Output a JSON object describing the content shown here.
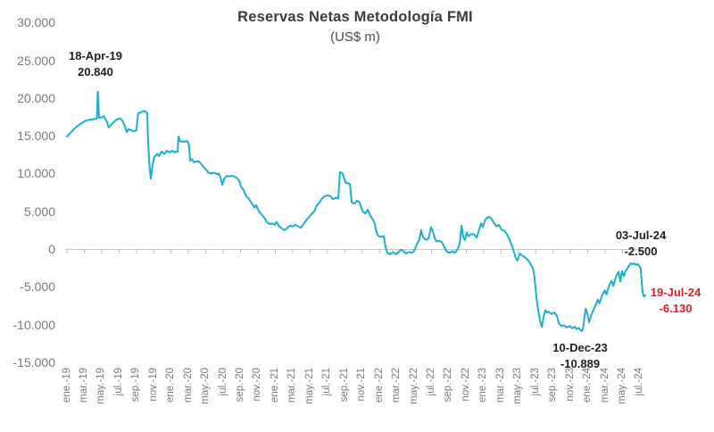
{
  "chart": {
    "title": "Reservas Netas Metodología FMI",
    "subtitle": "(US$ m)"
  },
  "annotations": {
    "peak": {
      "date": "18-Apr-19",
      "value": "20.840"
    },
    "trough": {
      "date": "10-Dec-23",
      "value": "-10.889"
    },
    "recent_high": {
      "date": "03-Jul-24",
      "value": "-2.500"
    },
    "latest": {
      "date": "19-Jul-24",
      "value": "-6.130"
    }
  },
  "colors": {
    "line": "#1CAFC9",
    "axis": "#C8C8C8",
    "tick": "#BDBDBD",
    "axis_label": "#7A7A7A",
    "annotation_dark": "#1F1F1F",
    "annotation_red": "#E11B22"
  },
  "chart_data": {
    "type": "line",
    "title": "Reservas Netas Metodología FMI",
    "subtitle": "(US$ m)",
    "xlabel": "",
    "ylabel": "US$ m",
    "grid": false,
    "legend": "none",
    "ylim": [
      -15000,
      30000
    ],
    "x_unit": "months since ene.-19",
    "x_tick_step_months": 2,
    "x_tick_labels": [
      "ene.-19",
      "mar.-19",
      "may.-19",
      "jul.-19",
      "sep.-19",
      "nov.-19",
      "ene.-20",
      "mar.-20",
      "may.-20",
      "jul.-20",
      "sep.-20",
      "nov.-20",
      "ene.-21",
      "mar.-21",
      "may.-21",
      "jul.-21",
      "sep.-21",
      "nov.-21",
      "ene.-22",
      "mar.-22",
      "may.-22",
      "jul.-22",
      "sep.-22",
      "nov.-22",
      "ene.-23",
      "mar.-23",
      "may.-23",
      "jul.-23",
      "sep.-23",
      "nov.-23",
      "ene.-24",
      "mar.-24",
      "may.-24",
      "jul.-24"
    ],
    "y_ticks": [
      {
        "label": "30.000",
        "value": 30000
      },
      {
        "label": "25.000",
        "value": 25000
      },
      {
        "label": "20.000",
        "value": 20000
      },
      {
        "label": "15.000",
        "value": 15000
      },
      {
        "label": "10.000",
        "value": 10000
      },
      {
        "label": "5.000",
        "value": 5000
      },
      {
        "label": "0",
        "value": 0
      },
      {
        "label": "-5.000",
        "value": -5000
      },
      {
        "label": "-10.000",
        "value": -10000
      },
      {
        "label": "-15.000",
        "value": -15000
      }
    ],
    "annotated_points": [
      {
        "date": "18-Apr-19",
        "value": 20840
      },
      {
        "date": "10-Dec-23",
        "value": -10889
      },
      {
        "date": "03-Jul-24",
        "value": -2500
      },
      {
        "date": "19-Jul-24",
        "value": -6130
      }
    ],
    "series": [
      {
        "name": "Reservas netas (metodología FMI)",
        "color": "#1CAFC9",
        "points": [
          [
            0,
            14900
          ],
          [
            0.5,
            15500
          ],
          [
            1,
            16100
          ],
          [
            1.5,
            16500
          ],
          [
            2,
            16900
          ],
          [
            2.5,
            17100
          ],
          [
            3.1,
            17200
          ],
          [
            3.45,
            17300
          ],
          [
            3.55,
            20840
          ],
          [
            3.7,
            17400
          ],
          [
            3.95,
            17400
          ],
          [
            4.25,
            17600
          ],
          [
            4.6,
            16900
          ],
          [
            4.8,
            16100
          ],
          [
            5.2,
            16600
          ],
          [
            5.65,
            17100
          ],
          [
            6.1,
            17300
          ],
          [
            6.4,
            17000
          ],
          [
            6.7,
            16200
          ],
          [
            6.9,
            15500
          ],
          [
            7.1,
            15900
          ],
          [
            7.4,
            15700
          ],
          [
            7.7,
            15600
          ],
          [
            8,
            15700
          ],
          [
            8.2,
            18000
          ],
          [
            8.5,
            18100
          ],
          [
            8.85,
            18300
          ],
          [
            9.05,
            18200
          ],
          [
            9.25,
            18000
          ],
          [
            9.35,
            14500
          ],
          [
            9.45,
            12200
          ],
          [
            9.55,
            10500
          ],
          [
            9.65,
            9300
          ],
          [
            9.85,
            11000
          ],
          [
            10.05,
            12200
          ],
          [
            10.4,
            12600
          ],
          [
            10.6,
            12300
          ],
          [
            10.9,
            12900
          ],
          [
            11.2,
            12600
          ],
          [
            11.5,
            13000
          ],
          [
            11.8,
            12800
          ],
          [
            12.1,
            13000
          ],
          [
            12.45,
            12800
          ],
          [
            12.75,
            12900
          ],
          [
            12.85,
            14900
          ],
          [
            13.05,
            14250
          ],
          [
            13.5,
            14200
          ],
          [
            13.85,
            14300
          ],
          [
            14.05,
            13800
          ],
          [
            14.2,
            11700
          ],
          [
            14.4,
            11900
          ],
          [
            14.6,
            11500
          ],
          [
            14.9,
            11600
          ],
          [
            15.2,
            11600
          ],
          [
            15.45,
            11300
          ],
          [
            15.7,
            10900
          ],
          [
            16.05,
            10500
          ],
          [
            16.3,
            10100
          ],
          [
            16.6,
            10000
          ],
          [
            17,
            10100
          ],
          [
            17.3,
            9900
          ],
          [
            17.5,
            10000
          ],
          [
            17.7,
            9400
          ],
          [
            17.9,
            8500
          ],
          [
            18.1,
            9300
          ],
          [
            18.4,
            9700
          ],
          [
            18.7,
            9600
          ],
          [
            19,
            9700
          ],
          [
            19.3,
            9600
          ],
          [
            19.6,
            9400
          ],
          [
            19.85,
            9000
          ],
          [
            20.05,
            8300
          ],
          [
            20.35,
            7800
          ],
          [
            20.65,
            7000
          ],
          [
            21,
            6600
          ],
          [
            21.3,
            6000
          ],
          [
            21.6,
            5500
          ],
          [
            21.8,
            5800
          ],
          [
            22.1,
            5000
          ],
          [
            22.4,
            4600
          ],
          [
            22.7,
            4200
          ],
          [
            23,
            3600
          ],
          [
            23.35,
            3300
          ],
          [
            23.65,
            3400
          ],
          [
            23.95,
            3200
          ],
          [
            24.15,
            3600
          ],
          [
            24.45,
            3000
          ],
          [
            24.8,
            2700
          ],
          [
            25.1,
            2500
          ],
          [
            25.4,
            2800
          ],
          [
            25.7,
            3100
          ],
          [
            26,
            3000
          ],
          [
            26.3,
            3200
          ],
          [
            26.65,
            3000
          ],
          [
            26.95,
            2800
          ],
          [
            27.25,
            3300
          ],
          [
            27.55,
            3800
          ],
          [
            27.85,
            4200
          ],
          [
            28.15,
            4600
          ],
          [
            28.5,
            5000
          ],
          [
            28.8,
            5800
          ],
          [
            29.1,
            6200
          ],
          [
            29.4,
            6700
          ],
          [
            29.7,
            7000
          ],
          [
            30,
            7100
          ],
          [
            30.35,
            7000
          ],
          [
            30.65,
            6600
          ],
          [
            30.95,
            6800
          ],
          [
            31.25,
            6700
          ],
          [
            31.45,
            10200
          ],
          [
            31.75,
            10000
          ],
          [
            32.1,
            8800
          ],
          [
            32.4,
            8700
          ],
          [
            32.6,
            8600
          ],
          [
            32.8,
            6200
          ],
          [
            33.1,
            6000
          ],
          [
            33.4,
            6400
          ],
          [
            33.7,
            6200
          ],
          [
            34.05,
            5000
          ],
          [
            34.35,
            4700
          ],
          [
            34.65,
            5200
          ],
          [
            34.95,
            4400
          ],
          [
            35.25,
            3900
          ],
          [
            35.45,
            3400
          ],
          [
            35.65,
            2200
          ],
          [
            35.9,
            1700
          ],
          [
            36.2,
            1600
          ],
          [
            36.5,
            1700
          ],
          [
            36.7,
            300
          ],
          [
            36.9,
            -500
          ],
          [
            37.2,
            -700
          ],
          [
            37.55,
            -400
          ],
          [
            37.85,
            -700
          ],
          [
            38.15,
            -500
          ],
          [
            38.45,
            -100
          ],
          [
            38.75,
            -300
          ],
          [
            39.05,
            -600
          ],
          [
            39.4,
            -400
          ],
          [
            39.7,
            -500
          ],
          [
            40,
            -200
          ],
          [
            40.3,
            600
          ],
          [
            40.6,
            1300
          ],
          [
            40.8,
            2500
          ],
          [
            41,
            1600
          ],
          [
            41.35,
            1200
          ],
          [
            41.65,
            1400
          ],
          [
            41.95,
            2900
          ],
          [
            42.15,
            2300
          ],
          [
            42.35,
            1500
          ],
          [
            42.55,
            1000
          ],
          [
            42.85,
            1100
          ],
          [
            43.2,
            900
          ],
          [
            43.5,
            200
          ],
          [
            43.8,
            -400
          ],
          [
            44.1,
            -500
          ],
          [
            44.4,
            -300
          ],
          [
            44.7,
            -500
          ],
          [
            45.05,
            100
          ],
          [
            45.25,
            700
          ],
          [
            45.45,
            3100
          ],
          [
            45.65,
            1600
          ],
          [
            45.85,
            1200
          ],
          [
            46.05,
            2200
          ],
          [
            46.25,
            1700
          ],
          [
            46.6,
            2000
          ],
          [
            46.9,
            1900
          ],
          [
            47.2,
            1500
          ],
          [
            47.5,
            2600
          ],
          [
            47.7,
            3400
          ],
          [
            47.9,
            2900
          ],
          [
            48.2,
            3900
          ],
          [
            48.55,
            4250
          ],
          [
            48.85,
            4100
          ],
          [
            49.15,
            3500
          ],
          [
            49.45,
            3000
          ],
          [
            49.75,
            3200
          ],
          [
            50.05,
            2600
          ],
          [
            50.4,
            2400
          ],
          [
            50.7,
            1900
          ],
          [
            51,
            1200
          ],
          [
            51.3,
            300
          ],
          [
            51.5,
            -400
          ],
          [
            51.7,
            -1200
          ],
          [
            51.9,
            -1500
          ],
          [
            52.15,
            -600
          ],
          [
            52.45,
            -900
          ],
          [
            52.75,
            -1100
          ],
          [
            53.05,
            -1400
          ],
          [
            53.35,
            -1900
          ],
          [
            53.65,
            -2500
          ],
          [
            53.85,
            -3600
          ],
          [
            54.1,
            -6600
          ],
          [
            54.3,
            -8200
          ],
          [
            54.5,
            -9500
          ],
          [
            54.7,
            -10300
          ],
          [
            54.9,
            -9000
          ],
          [
            55.1,
            -8100
          ],
          [
            55.3,
            -8400
          ],
          [
            55.5,
            -8300
          ],
          [
            55.8,
            -8600
          ],
          [
            56.15,
            -8400
          ],
          [
            56.45,
            -8900
          ],
          [
            56.65,
            -9800
          ],
          [
            56.95,
            -10200
          ],
          [
            57.25,
            -10100
          ],
          [
            57.55,
            -10400
          ],
          [
            57.9,
            -10200
          ],
          [
            58.2,
            -10500
          ],
          [
            58.5,
            -10300
          ],
          [
            58.7,
            -10600
          ],
          [
            58.95,
            -10450
          ],
          [
            59.3,
            -10889
          ],
          [
            59.45,
            -10500
          ],
          [
            59.6,
            -9200
          ],
          [
            59.75,
            -7900
          ],
          [
            59.95,
            -8600
          ],
          [
            60.15,
            -9700
          ],
          [
            60.35,
            -8900
          ],
          [
            60.55,
            -8300
          ],
          [
            60.75,
            -7800
          ],
          [
            60.95,
            -7300
          ],
          [
            61.15,
            -6700
          ],
          [
            61.35,
            -7200
          ],
          [
            61.55,
            -6400
          ],
          [
            61.75,
            -5900
          ],
          [
            61.95,
            -5500
          ],
          [
            62.15,
            -6000
          ],
          [
            62.35,
            -5200
          ],
          [
            62.55,
            -4600
          ],
          [
            62.75,
            -4200
          ],
          [
            62.95,
            -4900
          ],
          [
            63.15,
            -4000
          ],
          [
            63.35,
            -3400
          ],
          [
            63.55,
            -3000
          ],
          [
            63.75,
            -4300
          ],
          [
            63.95,
            -2900
          ],
          [
            64.15,
            -3600
          ],
          [
            64.35,
            -2900
          ],
          [
            64.55,
            -2600
          ],
          [
            64.75,
            -2200
          ],
          [
            64.95,
            -1900
          ],
          [
            65.15,
            -2000
          ],
          [
            65.35,
            -1900
          ],
          [
            65.55,
            -2100
          ],
          [
            65.75,
            -2000
          ],
          [
            66.07,
            -2500
          ],
          [
            66.3,
            -5600
          ],
          [
            66.45,
            -6300
          ],
          [
            66.63,
            -6130
          ]
        ]
      }
    ]
  }
}
